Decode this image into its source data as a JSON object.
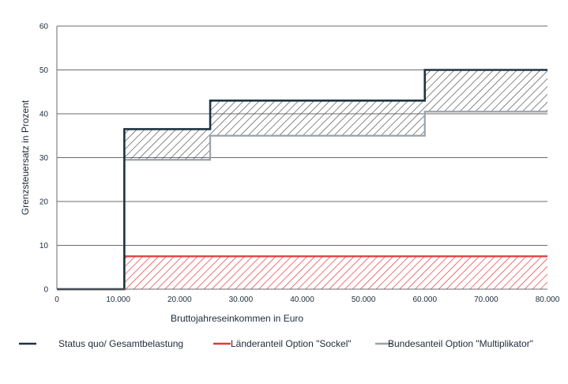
{
  "chart_data": {
    "type": "line",
    "xlabel": "Bruttojahreseinkommen in Euro",
    "ylabel": "Grenzsteuersatz in Prozent",
    "xlim": [
      0,
      80000
    ],
    "ylim": [
      0,
      60
    ],
    "x_ticks": [
      0,
      10000,
      20000,
      30000,
      40000,
      50000,
      60000,
      70000,
      80000
    ],
    "x_tick_labels": [
      "0",
      "10.000",
      "20.000",
      "30.000",
      "40.000",
      "50.000",
      "60.000",
      "70.000",
      "80.000"
    ],
    "y_ticks": [
      0,
      10,
      20,
      30,
      40,
      50,
      60
    ],
    "y_tick_labels": [
      "0",
      "10",
      "20",
      "30",
      "40",
      "50",
      "60"
    ],
    "grid": "horizontal",
    "legend_position": "bottom",
    "series": [
      {
        "name": "Status quo/ Gesamtbelastung",
        "color": "#1d3340",
        "step": true,
        "x": [
          0,
          11000,
          11000,
          25000,
          25000,
          60000,
          60000,
          80000
        ],
        "y": [
          0,
          0,
          36.5,
          36.5,
          43,
          43,
          50,
          50
        ]
      },
      {
        "name": "Länderanteil Option \"Sockel\"",
        "color": "#e03a3a",
        "step": true,
        "x": [
          0,
          11000,
          11000,
          80000
        ],
        "y": [
          0,
          0,
          7.5,
          7.5
        ]
      },
      {
        "name": "Bundesanteil Option \"Multiplikator\"",
        "color": "#9aa4aa",
        "step": true,
        "x": [
          0,
          11000,
          11000,
          25000,
          25000,
          60000,
          60000,
          80000
        ],
        "y": [
          0,
          0,
          29.5,
          29.5,
          35,
          35,
          40.5,
          40.5
        ]
      }
    ],
    "hatched_bands": [
      {
        "between": [
          "Status quo/ Gesamtbelastung",
          "Bundesanteil Option \"Multiplikator\""
        ],
        "color": "#555555"
      },
      {
        "between": [
          "Länderanteil Option \"Sockel\"",
          "baseline"
        ],
        "color": "#e03a3a"
      }
    ]
  }
}
